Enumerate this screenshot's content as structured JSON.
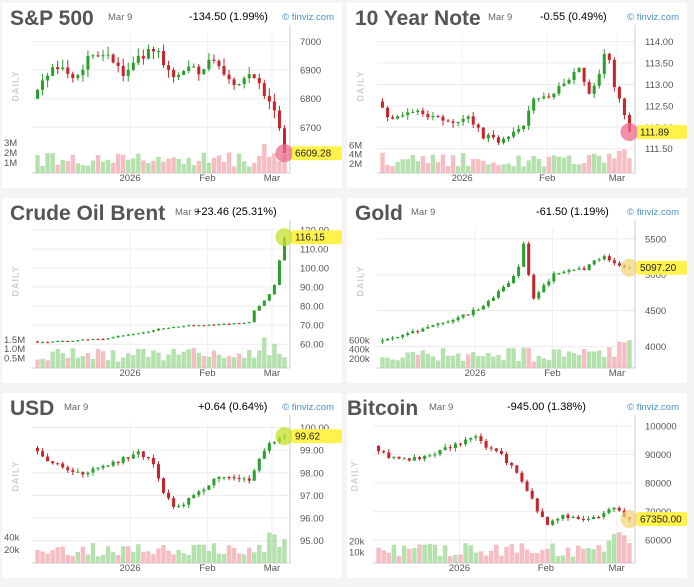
{
  "chart_data": [
    {
      "type": "candlestick",
      "title": "S&P 500",
      "date": "Mar 9",
      "change": "-134.50 (1.99%)",
      "change_dir": "neg",
      "brand": "© finviz.com",
      "side_label": "DAILY",
      "price_ticks": [
        "7000",
        "6900",
        "6800",
        "6700"
      ],
      "price_tick_values": [
        7000,
        6900,
        6800,
        6700
      ],
      "price_range": [
        6610,
        7030
      ],
      "volume_ticks": [
        "3M",
        "2M",
        "1M"
      ],
      "volume_tick_values": [
        3,
        2,
        1
      ],
      "volume_range": [
        0,
        3.2
      ],
      "x_ticks": [
        "2026",
        "Feb",
        "Mar"
      ],
      "x_tick_positions": [
        0.38,
        0.68,
        0.93
      ],
      "last_price": "6609.28",
      "last_value": 6609.28,
      "highlight_color": "#ee6b8e",
      "trend": [
        [
          0,
          6800
        ],
        [
          0.04,
          6880
        ],
        [
          0.1,
          6905
        ],
        [
          0.16,
          6870
        ],
        [
          0.22,
          6935
        ],
        [
          0.3,
          6960
        ],
        [
          0.36,
          6890
        ],
        [
          0.42,
          6950
        ],
        [
          0.5,
          6965
        ],
        [
          0.56,
          6860
        ],
        [
          0.62,
          6930
        ],
        [
          0.66,
          6880
        ],
        [
          0.7,
          6950
        ],
        [
          0.76,
          6890
        ],
        [
          0.8,
          6860
        ],
        [
          0.86,
          6870
        ],
        [
          0.9,
          6840
        ],
        [
          0.94,
          6800
        ],
        [
          0.97,
          6750
        ],
        [
          1.0,
          6609
        ]
      ],
      "volatility": 35
    },
    {
      "type": "candlestick",
      "title": "10 Year Note",
      "date": "Mar 9",
      "change": "-0.55 (0.49%)",
      "change_dir": "neg",
      "brand": "© finviz.com",
      "side_label": "DAILY",
      "price_ticks": [
        "114.00",
        "113.50",
        "113.00",
        "112.50",
        "112.00",
        "111.50"
      ],
      "price_tick_values": [
        114,
        113.5,
        113,
        112.5,
        112,
        111.5
      ],
      "price_range": [
        111.4,
        114.2
      ],
      "volume_ticks": [
        "6M",
        "4M",
        "2M"
      ],
      "volume_tick_values": [
        6,
        4,
        2
      ],
      "volume_range": [
        0,
        7
      ],
      "x_ticks": [
        "2026",
        "Feb",
        "Mar"
      ],
      "x_tick_positions": [
        0.33,
        0.66,
        0.93
      ],
      "last_price": "111.89",
      "last_value": 111.89,
      "highlight_color": "#ee6b8e",
      "trend": [
        [
          0,
          112.6
        ],
        [
          0.05,
          112.2
        ],
        [
          0.12,
          112.4
        ],
        [
          0.2,
          112.3
        ],
        [
          0.28,
          112.1
        ],
        [
          0.36,
          112.2
        ],
        [
          0.42,
          111.8
        ],
        [
          0.48,
          111.7
        ],
        [
          0.54,
          111.9
        ],
        [
          0.58,
          112.1
        ],
        [
          0.62,
          112.6
        ],
        [
          0.7,
          112.8
        ],
        [
          0.76,
          113.1
        ],
        [
          0.8,
          113.4
        ],
        [
          0.84,
          112.8
        ],
        [
          0.88,
          113.2
        ],
        [
          0.91,
          113.9
        ],
        [
          0.94,
          113.0
        ],
        [
          0.97,
          112.4
        ],
        [
          1.0,
          111.89
        ]
      ],
      "volatility": 0.14
    },
    {
      "type": "candlestick",
      "title": "Crude Oil Brent",
      "date": "Mar 9",
      "change": "+23.46 (25.31%)",
      "change_dir": "pos",
      "brand": "",
      "side_label": "DAILY",
      "price_ticks": [
        "120.00",
        "110.00",
        "100.00",
        "90.00",
        "80.00",
        "70.00",
        "60.00"
      ],
      "price_tick_values": [
        120,
        110,
        100,
        90,
        80,
        70,
        60
      ],
      "price_range": [
        58,
        121
      ],
      "volume_ticks": [
        "1.5M",
        "1.0M",
        "0.5M"
      ],
      "volume_tick_values": [
        1.5,
        1.0,
        0.5
      ],
      "volume_range": [
        0,
        1.7
      ],
      "x_ticks": [
        "2026",
        "Feb",
        "Mar"
      ],
      "x_tick_positions": [
        0.38,
        0.68,
        0.93
      ],
      "last_price": "116.15",
      "last_value": 116.15,
      "highlight_color": "#c5e02a",
      "trend": [
        [
          0,
          61.5
        ],
        [
          0.06,
          61.0
        ],
        [
          0.12,
          61.8
        ],
        [
          0.2,
          62.2
        ],
        [
          0.28,
          62.8
        ],
        [
          0.36,
          64.5
        ],
        [
          0.44,
          66.0
        ],
        [
          0.52,
          68.5
        ],
        [
          0.6,
          69.5
        ],
        [
          0.68,
          70.0
        ],
        [
          0.76,
          70.5
        ],
        [
          0.82,
          71.2
        ],
        [
          0.86,
          71.5
        ],
        [
          0.88,
          77.5
        ],
        [
          0.9,
          80.0
        ],
        [
          0.92,
          83.0
        ],
        [
          0.94,
          86.0
        ],
        [
          0.96,
          91.0
        ],
        [
          0.98,
          104.0
        ],
        [
          1.0,
          116.15
        ]
      ],
      "volatility": 0.6
    },
    {
      "type": "candlestick",
      "title": "Gold",
      "date": "Mar 9",
      "change": "-61.50 (1.19%)",
      "change_dir": "neg",
      "brand": "© finviz.com",
      "side_label": "DAILY",
      "price_ticks": [
        "5500",
        "5000",
        "4500",
        "4000"
      ],
      "price_tick_values": [
        5500,
        5000,
        4500,
        4000
      ],
      "price_range": [
        3980,
        5650
      ],
      "volume_ticks": [
        "600k",
        "400k",
        "200k"
      ],
      "volume_tick_values": [
        600,
        400,
        200
      ],
      "volume_range": [
        0,
        700
      ],
      "x_ticks": [
        "2026",
        "Feb",
        "Mar"
      ],
      "x_tick_positions": [
        0.38,
        0.68,
        0.93
      ],
      "last_price": "5097.20",
      "last_value": 5097.2,
      "highlight_color": "#f2d77a",
      "trend": [
        [
          0,
          4070
        ],
        [
          0.08,
          4150
        ],
        [
          0.16,
          4220
        ],
        [
          0.24,
          4300
        ],
        [
          0.3,
          4380
        ],
        [
          0.36,
          4450
        ],
        [
          0.42,
          4580
        ],
        [
          0.48,
          4750
        ],
        [
          0.52,
          4900
        ],
        [
          0.56,
          5100
        ],
        [
          0.58,
          5450
        ],
        [
          0.6,
          4980
        ],
        [
          0.62,
          4650
        ],
        [
          0.66,
          4850
        ],
        [
          0.7,
          5000
        ],
        [
          0.76,
          5050
        ],
        [
          0.82,
          5080
        ],
        [
          0.86,
          5180
        ],
        [
          0.9,
          5250
        ],
        [
          0.94,
          5150
        ],
        [
          1.0,
          5097
        ]
      ],
      "volatility": 45
    },
    {
      "type": "candlestick",
      "title": "USD",
      "date": "Mar 9",
      "change": "+0.64 (0.64%)",
      "change_dir": "pos",
      "brand": "© finviz.com",
      "side_label": "DAILY",
      "price_ticks": [
        "100.00",
        "99.00",
        "98.00",
        "97.00",
        "96.00",
        "95.00"
      ],
      "price_tick_values": [
        100,
        99,
        98,
        97,
        96,
        95
      ],
      "price_range": [
        94.9,
        100.2
      ],
      "volume_ticks": [
        "40k",
        "20k"
      ],
      "volume_tick_values": [
        40,
        20
      ],
      "volume_range": [
        0,
        50
      ],
      "x_ticks": [
        "2026",
        "Feb",
        "Mar"
      ],
      "x_tick_positions": [
        0.38,
        0.68,
        0.93
      ],
      "last_price": "99.62",
      "last_value": 99.62,
      "highlight_color": "#c5e02a",
      "trend": [
        [
          0,
          99.1
        ],
        [
          0.05,
          98.6
        ],
        [
          0.12,
          98.2
        ],
        [
          0.2,
          97.9
        ],
        [
          0.28,
          98.3
        ],
        [
          0.36,
          98.6
        ],
        [
          0.42,
          98.9
        ],
        [
          0.48,
          98.4
        ],
        [
          0.52,
          97.2
        ],
        [
          0.56,
          96.4
        ],
        [
          0.6,
          96.6
        ],
        [
          0.64,
          97.0
        ],
        [
          0.7,
          97.5
        ],
        [
          0.76,
          97.9
        ],
        [
          0.82,
          97.8
        ],
        [
          0.86,
          97.7
        ],
        [
          0.9,
          98.6
        ],
        [
          0.94,
          99.3
        ],
        [
          0.97,
          99.5
        ],
        [
          1.0,
          99.62
        ]
      ],
      "volatility": 0.2
    },
    {
      "type": "candlestick",
      "title": "Bitcoin",
      "date": "Mar 9",
      "change": "-945.00 (1.38%)",
      "change_dir": "neg",
      "brand": "© finviz.com",
      "side_label": "DAILY",
      "price_ticks": [
        "100000",
        "90000",
        "80000",
        "70000",
        "60000"
      ],
      "price_tick_values": [
        100000,
        90000,
        80000,
        70000,
        60000
      ],
      "price_range": [
        59000,
        101000
      ],
      "volume_ticks": [
        "20k",
        "10k"
      ],
      "volume_tick_values": [
        20,
        10
      ],
      "volume_range": [
        0,
        30
      ],
      "x_ticks": [
        "2026",
        "Feb",
        "Mar"
      ],
      "x_tick_positions": [
        0.33,
        0.66,
        0.93
      ],
      "last_price": "67350.00",
      "last_value": 67350,
      "highlight_color": "#f2d77a",
      "trend": [
        [
          0,
          93000
        ],
        [
          0.06,
          89000
        ],
        [
          0.12,
          88000
        ],
        [
          0.2,
          89500
        ],
        [
          0.28,
          92000
        ],
        [
          0.34,
          94000
        ],
        [
          0.4,
          97000
        ],
        [
          0.44,
          93000
        ],
        [
          0.5,
          89500
        ],
        [
          0.56,
          84000
        ],
        [
          0.6,
          78000
        ],
        [
          0.64,
          70000
        ],
        [
          0.68,
          66000
        ],
        [
          0.74,
          68500
        ],
        [
          0.8,
          67500
        ],
        [
          0.86,
          68000
        ],
        [
          0.9,
          69500
        ],
        [
          0.94,
          71500
        ],
        [
          0.97,
          69000
        ],
        [
          1.0,
          67350
        ]
      ],
      "volatility": 1500
    }
  ]
}
